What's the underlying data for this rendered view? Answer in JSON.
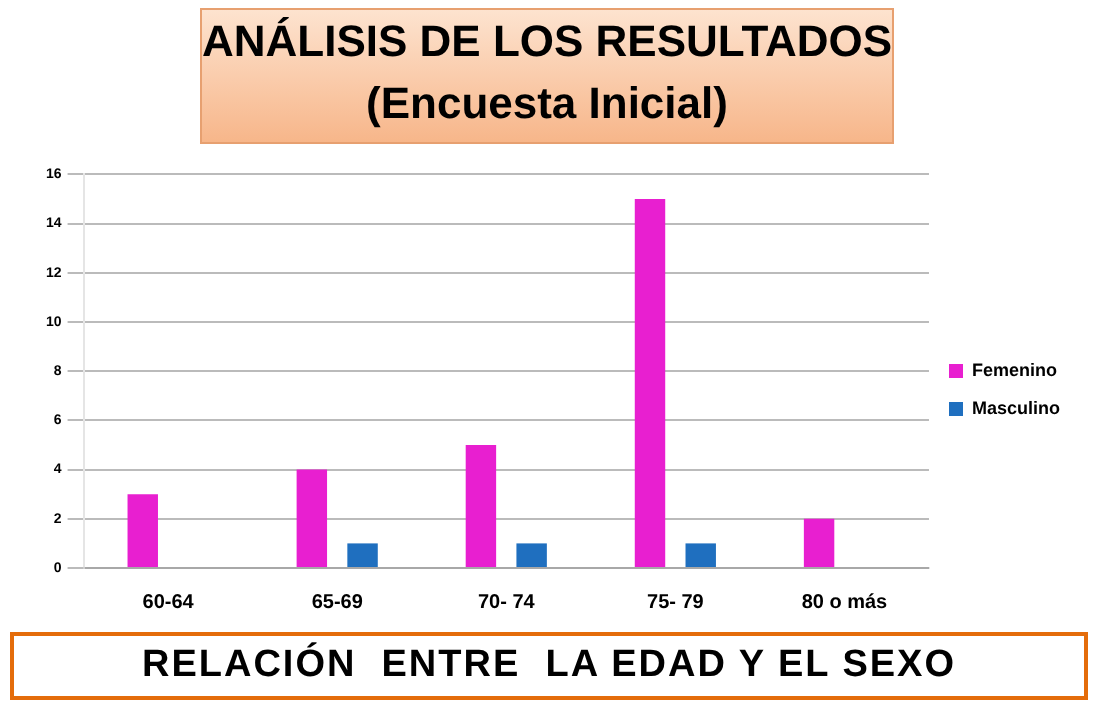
{
  "chart_data": {
    "type": "bar",
    "title": "ANÁLISIS DE LOS RESULTADOS\n(Encuesta Inicial)",
    "categories": [
      "60-64",
      "65-69",
      "70- 74",
      "75- 79",
      "80 o más"
    ],
    "series": [
      {
        "name": "Femenino",
        "color": "#e81fd0",
        "values": [
          3,
          4,
          5,
          15,
          2
        ]
      },
      {
        "name": "Masculino",
        "color": "#1f6fbf",
        "values": [
          null,
          1,
          1,
          1,
          null
        ]
      }
    ],
    "ylim": [
      0,
      16
    ],
    "yticks": [
      0,
      2,
      4,
      6,
      8,
      10,
      12,
      14,
      16
    ],
    "grid": "y",
    "legend": "right",
    "annotations": [
      "RELACIÓN  ENTRE  LA EDAD Y EL SEXO"
    ]
  }
}
